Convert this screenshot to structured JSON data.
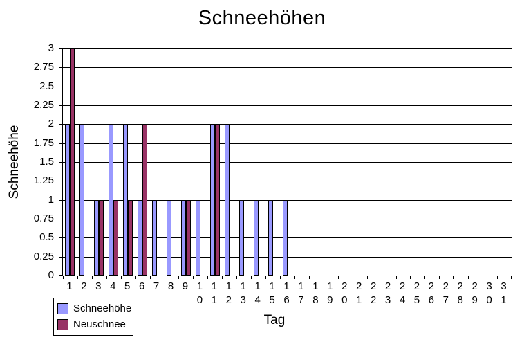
{
  "chart_data": {
    "type": "bar",
    "title": "Schneehöhen",
    "xlabel": "Tag",
    "ylabel": "Schneehöhe",
    "categories": [
      "1",
      "2",
      "3",
      "4",
      "5",
      "6",
      "7",
      "8",
      "9",
      "10",
      "11",
      "12",
      "13",
      "14",
      "15",
      "16",
      "17",
      "18",
      "19",
      "20",
      "21",
      "22",
      "23",
      "24",
      "25",
      "26",
      "27",
      "28",
      "29",
      "30",
      "31"
    ],
    "series": [
      {
        "name": "Schneehöhe",
        "color": "#9999ff",
        "values": [
          2,
          2,
          1,
          2,
          2,
          1,
          1,
          1,
          1,
          1,
          2,
          2,
          1,
          1,
          1,
          1,
          0,
          0,
          0,
          0,
          0,
          0,
          0,
          0,
          0,
          0,
          0,
          0,
          0,
          0,
          0
        ]
      },
      {
        "name": "Neuschnee",
        "color": "#993366",
        "values": [
          3,
          0,
          1,
          1,
          1,
          2,
          0,
          0,
          1,
          0,
          2,
          0,
          0,
          0,
          0,
          0,
          0,
          0,
          0,
          0,
          0,
          0,
          0,
          0,
          0,
          0,
          0,
          0,
          0,
          0,
          0
        ]
      }
    ],
    "ylim": [
      0,
      3
    ],
    "ytick_step": 0.25,
    "ytick_labels": [
      "0",
      "0.25",
      "0.5",
      "0.75",
      "1",
      "1.25",
      "1.5",
      "1.75",
      "2",
      "2.25",
      "2.5",
      "2.75",
      "3"
    ],
    "grid": true,
    "legend_position": "bottom-left",
    "bar_border_color": "#000000",
    "axis_color": "#000000"
  }
}
